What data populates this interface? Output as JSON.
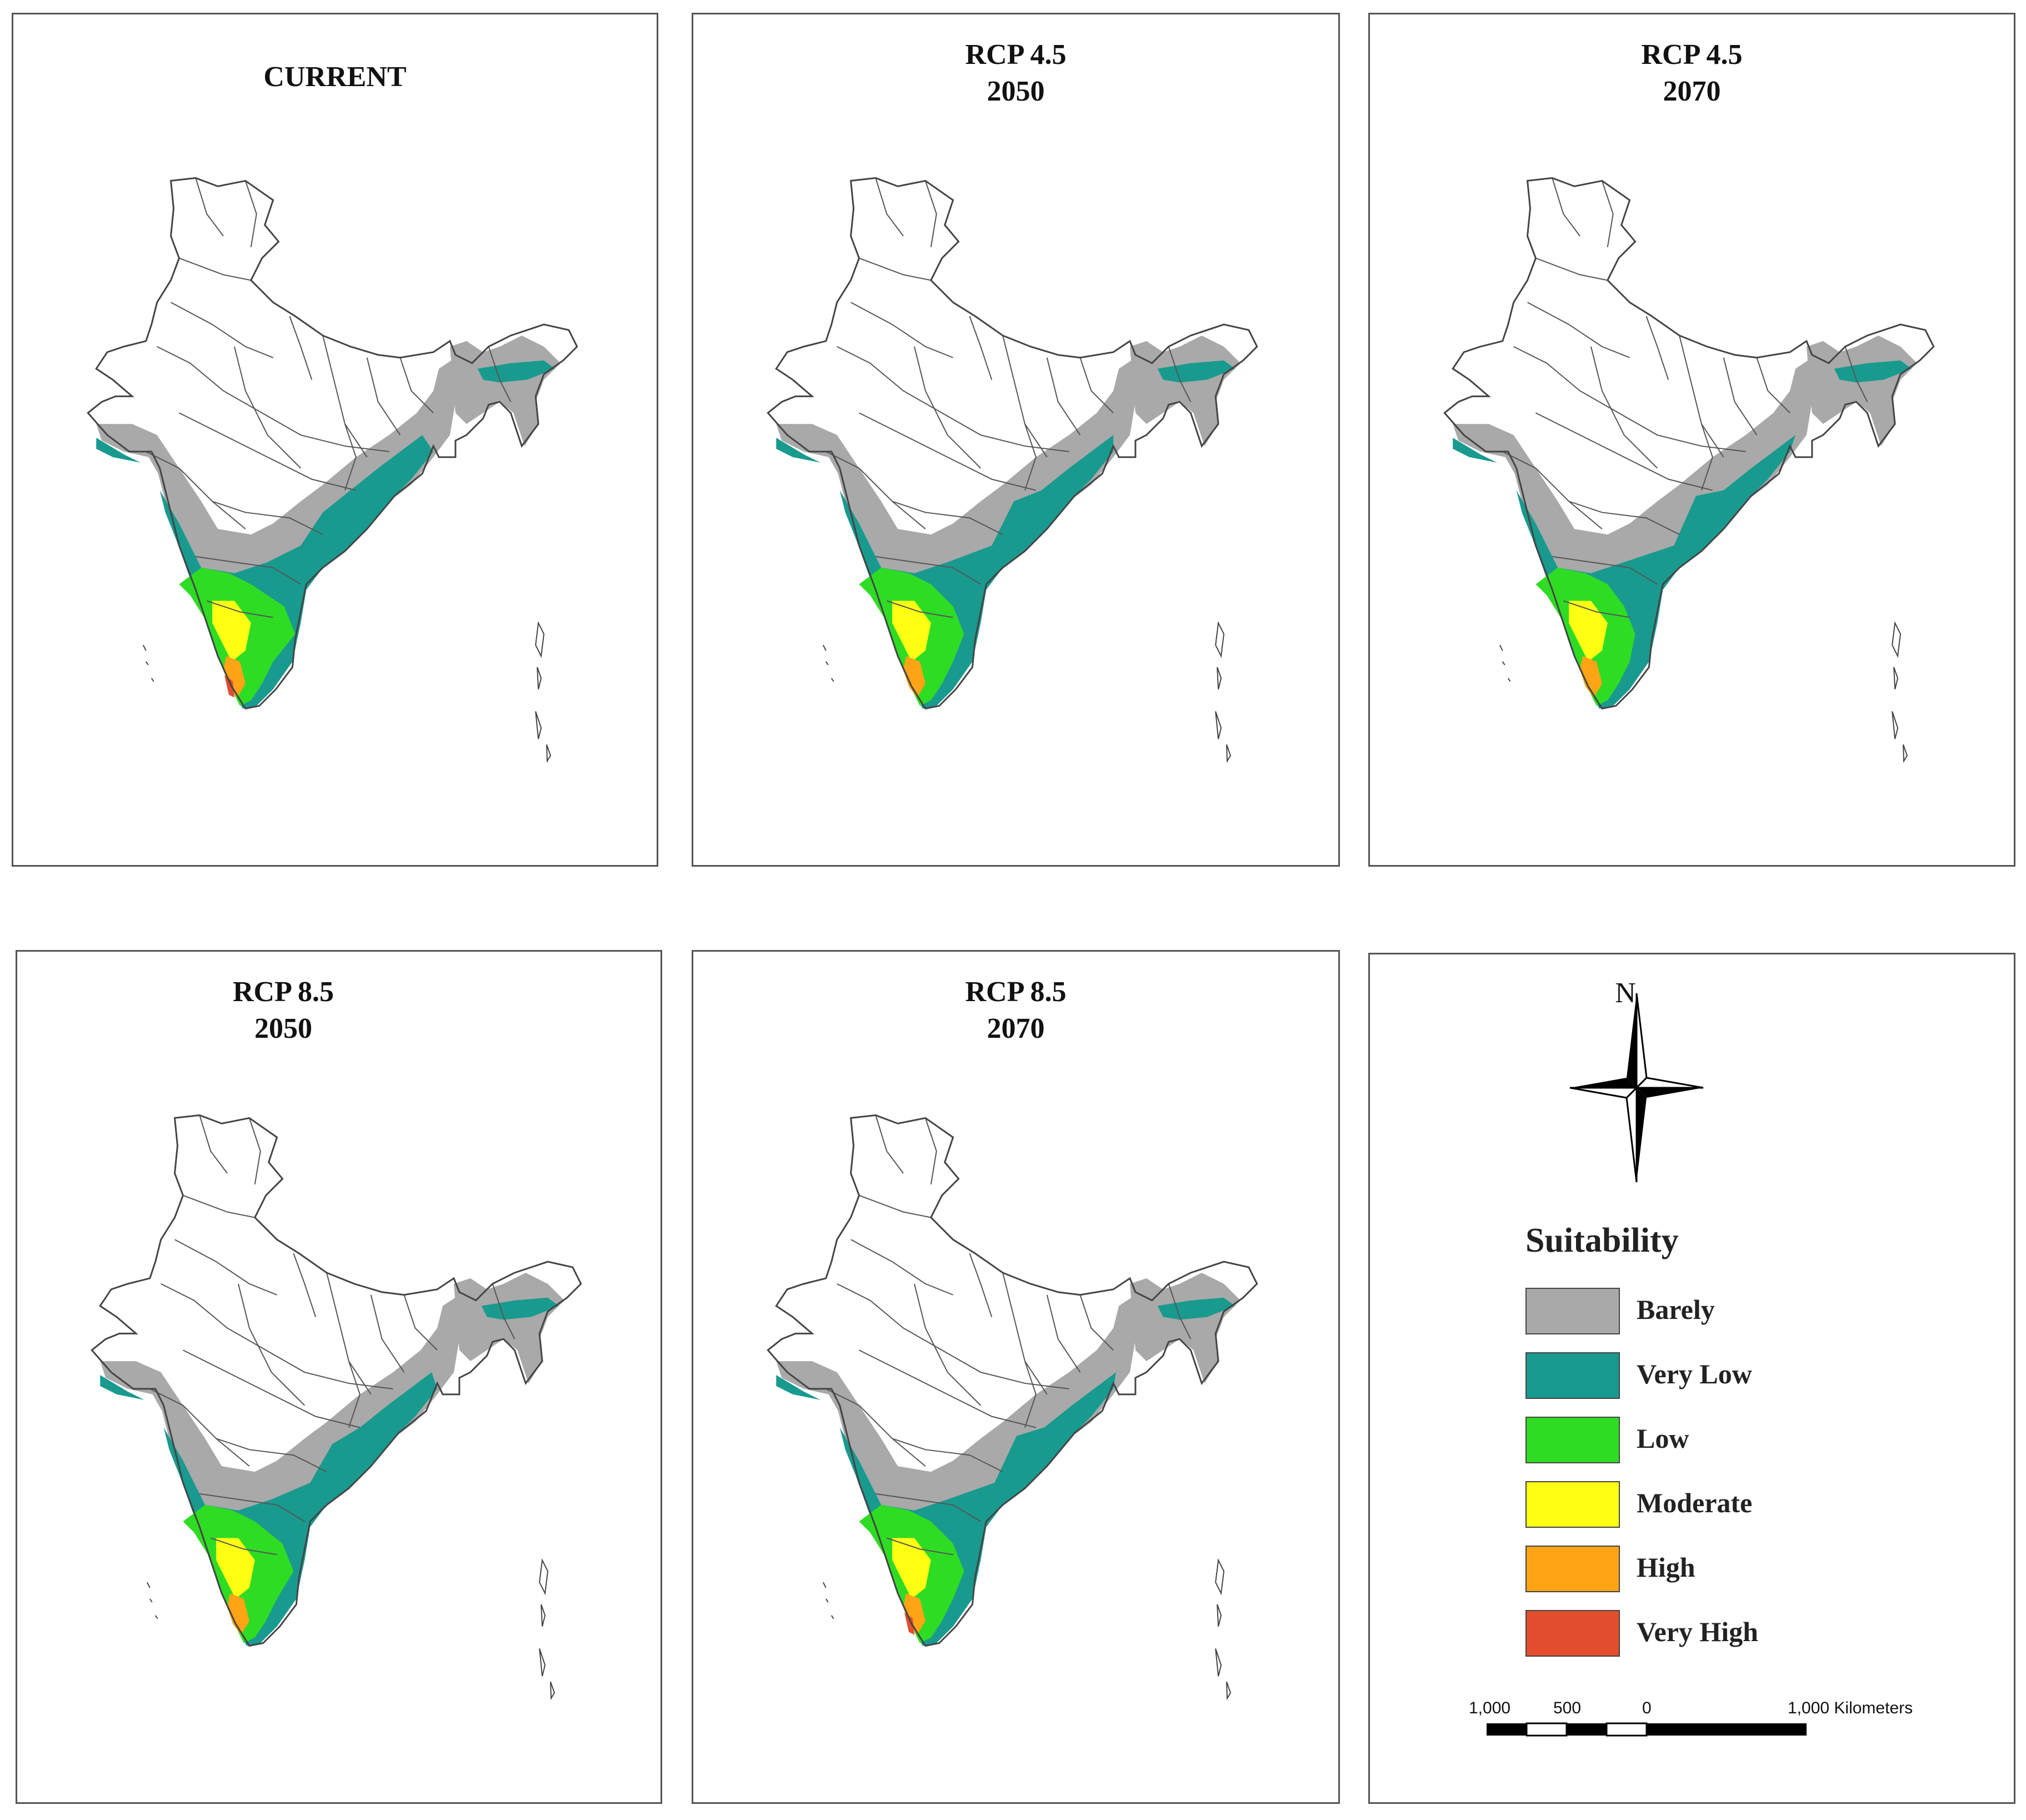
{
  "panels": [
    {
      "id": "current",
      "title_line1": "CURRENT",
      "title_line2": ""
    },
    {
      "id": "rcp45_2050",
      "title_line1": "RCP 4.5",
      "title_line2": "2050"
    },
    {
      "id": "rcp45_2070",
      "title_line1": "RCP 4.5",
      "title_line2": "2070"
    },
    {
      "id": "rcp85_2050",
      "title_line1": "RCP 8.5",
      "title_line2": "2050"
    },
    {
      "id": "rcp85_2070",
      "title_line1": "RCP 8.5",
      "title_line2": "2070"
    }
  ],
  "north_arrow": {
    "label": "N"
  },
  "legend": {
    "title": "Suitability",
    "items": [
      {
        "label": "Barely",
        "color": "#a9a9a9"
      },
      {
        "label": "Very Low",
        "color": "#199a8f"
      },
      {
        "label": "Low",
        "color": "#2fdc24"
      },
      {
        "label": "Moderate",
        "color": "#ffff14"
      },
      {
        "label": "High",
        "color": "#ffa415"
      },
      {
        "label": "Very High",
        "color": "#e24e2e"
      }
    ]
  },
  "scale_bar": {
    "ticks": [
      "1,000",
      "500",
      "0",
      "1,000 Kilometers"
    ]
  }
}
